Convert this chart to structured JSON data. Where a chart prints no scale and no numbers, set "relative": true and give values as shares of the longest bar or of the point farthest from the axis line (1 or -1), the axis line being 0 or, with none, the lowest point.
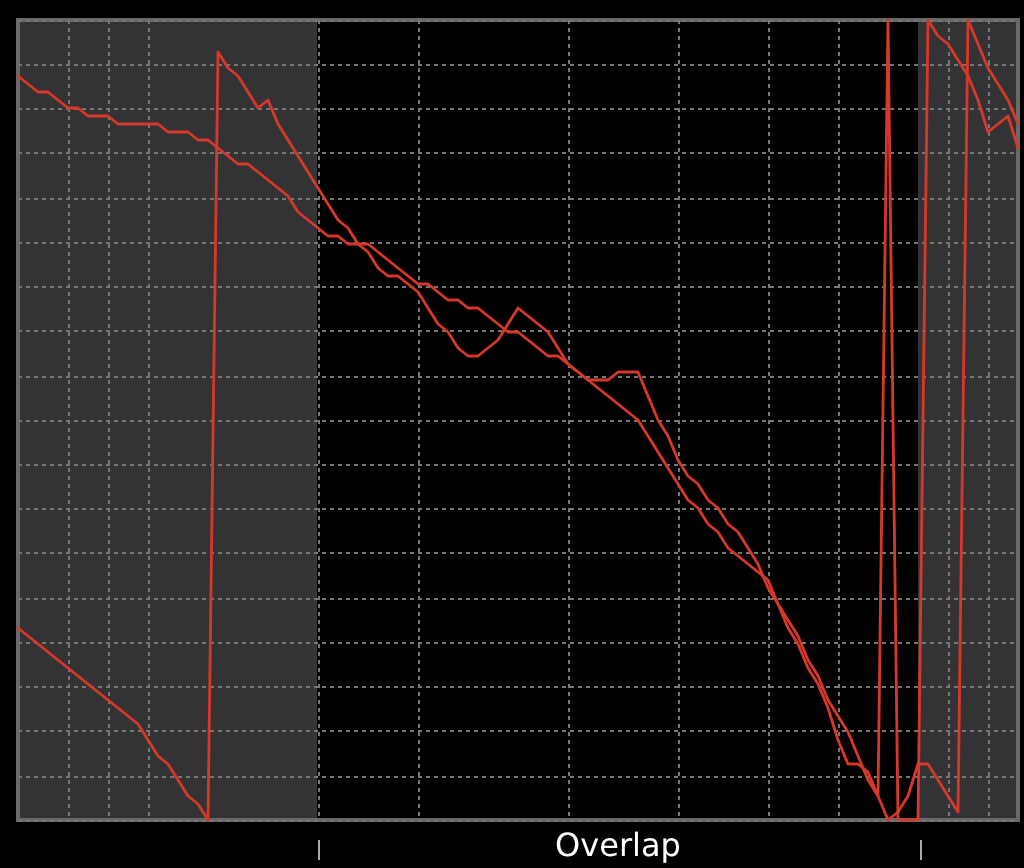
{
  "chart_data": {
    "type": "line",
    "relative": true,
    "annotations": [
      "Overlap"
    ],
    "grid": true,
    "categories": [
      null,
      null,
      null,
      null,
      null,
      null,
      null,
      null,
      null,
      null,
      null,
      null,
      null,
      null,
      null,
      null,
      null,
      null,
      null,
      null,
      null,
      null,
      null,
      null,
      null,
      null,
      null,
      null,
      null,
      null,
      null,
      null,
      null,
      null,
      null,
      null,
      null,
      null,
      null,
      null,
      null,
      null,
      null,
      null,
      null,
      null,
      null,
      null,
      null,
      null,
      null,
      null,
      null,
      null,
      null,
      null,
      null,
      null,
      null,
      null,
      null,
      null,
      null,
      null,
      null,
      null,
      null,
      null,
      null,
      null,
      null,
      null,
      null,
      null,
      null,
      null,
      null,
      null,
      null,
      null,
      null,
      null,
      null,
      null,
      null,
      null,
      null,
      null,
      null,
      null,
      null,
      null,
      null,
      null,
      null,
      null,
      null,
      null,
      null,
      null,
      null
    ],
    "series": [
      {
        "color": "#d8382a",
        "values": [
          0.93,
          0.92,
          0.91,
          0.91,
          0.9,
          0.89,
          0.89,
          0.88,
          0.88,
          0.88,
          0.87,
          0.87,
          0.87,
          0.87,
          0.87,
          0.86,
          0.86,
          0.86,
          0.85,
          0.85,
          0.84,
          0.83,
          0.82,
          0.82,
          0.81,
          0.8,
          0.79,
          0.78,
          0.76,
          0.75,
          0.74,
          0.73,
          0.73,
          0.72,
          0.72,
          0.72,
          0.71,
          0.7,
          0.69,
          0.68,
          0.67,
          0.67,
          0.66,
          0.65,
          0.65,
          0.64,
          0.64,
          0.63,
          0.62,
          0.61,
          0.61,
          0.6,
          0.59,
          0.58,
          0.58,
          0.57,
          0.56,
          0.55,
          0.54,
          0.53,
          0.52,
          0.51,
          0.5,
          0.48,
          0.46,
          0.44,
          0.42,
          0.4,
          0.39,
          0.37,
          0.36,
          0.34,
          0.33,
          0.32,
          0.31,
          0.3,
          0.27,
          0.25,
          0.23,
          0.2,
          0.18,
          0.15,
          0.13,
          0.11,
          0.08,
          0.05,
          0.03,
          0,
          0.01,
          0.03,
          0.07,
          0.07,
          0.05,
          0.03,
          0.01,
          1,
          0.97,
          0.94,
          0.92,
          0.9,
          0.87
        ]
      },
      {
        "color": "#d8382a",
        "values": [
          0.24,
          0.23,
          0.22,
          0.21,
          0.2,
          0.19,
          0.18,
          0.17,
          0.16,
          0.15,
          0.14,
          0.13,
          0.12,
          0.1,
          0.08,
          0.07,
          0.05,
          0.03,
          0.02,
          0,
          0.96,
          0.94,
          0.93,
          0.91,
          0.89,
          0.9,
          0.87,
          0.85,
          0.83,
          0.81,
          0.79,
          0.77,
          0.75,
          0.74,
          0.72,
          0.71,
          0.69,
          0.68,
          0.68,
          0.67,
          0.66,
          0.64,
          0.62,
          0.61,
          0.59,
          0.58,
          0.58,
          0.59,
          0.6,
          0.62,
          0.64,
          0.63,
          0.62,
          0.61,
          0.59,
          0.57,
          0.56,
          0.55,
          0.55,
          0.55,
          0.56,
          0.56,
          0.56,
          0.53,
          0.5,
          0.48,
          0.45,
          0.43,
          0.42,
          0.4,
          0.39,
          0.37,
          0.36,
          0.34,
          0.32,
          0.29,
          0.27,
          0.24,
          0.22,
          0.19,
          0.17,
          0.14,
          0.1,
          0.07,
          0.07,
          0.06,
          0.03,
          1,
          0,
          0,
          0,
          1,
          0.98,
          0.97,
          0.95,
          0.93,
          0.9,
          0.86,
          0.87,
          0.88,
          0.84
        ]
      }
    ]
  }
}
